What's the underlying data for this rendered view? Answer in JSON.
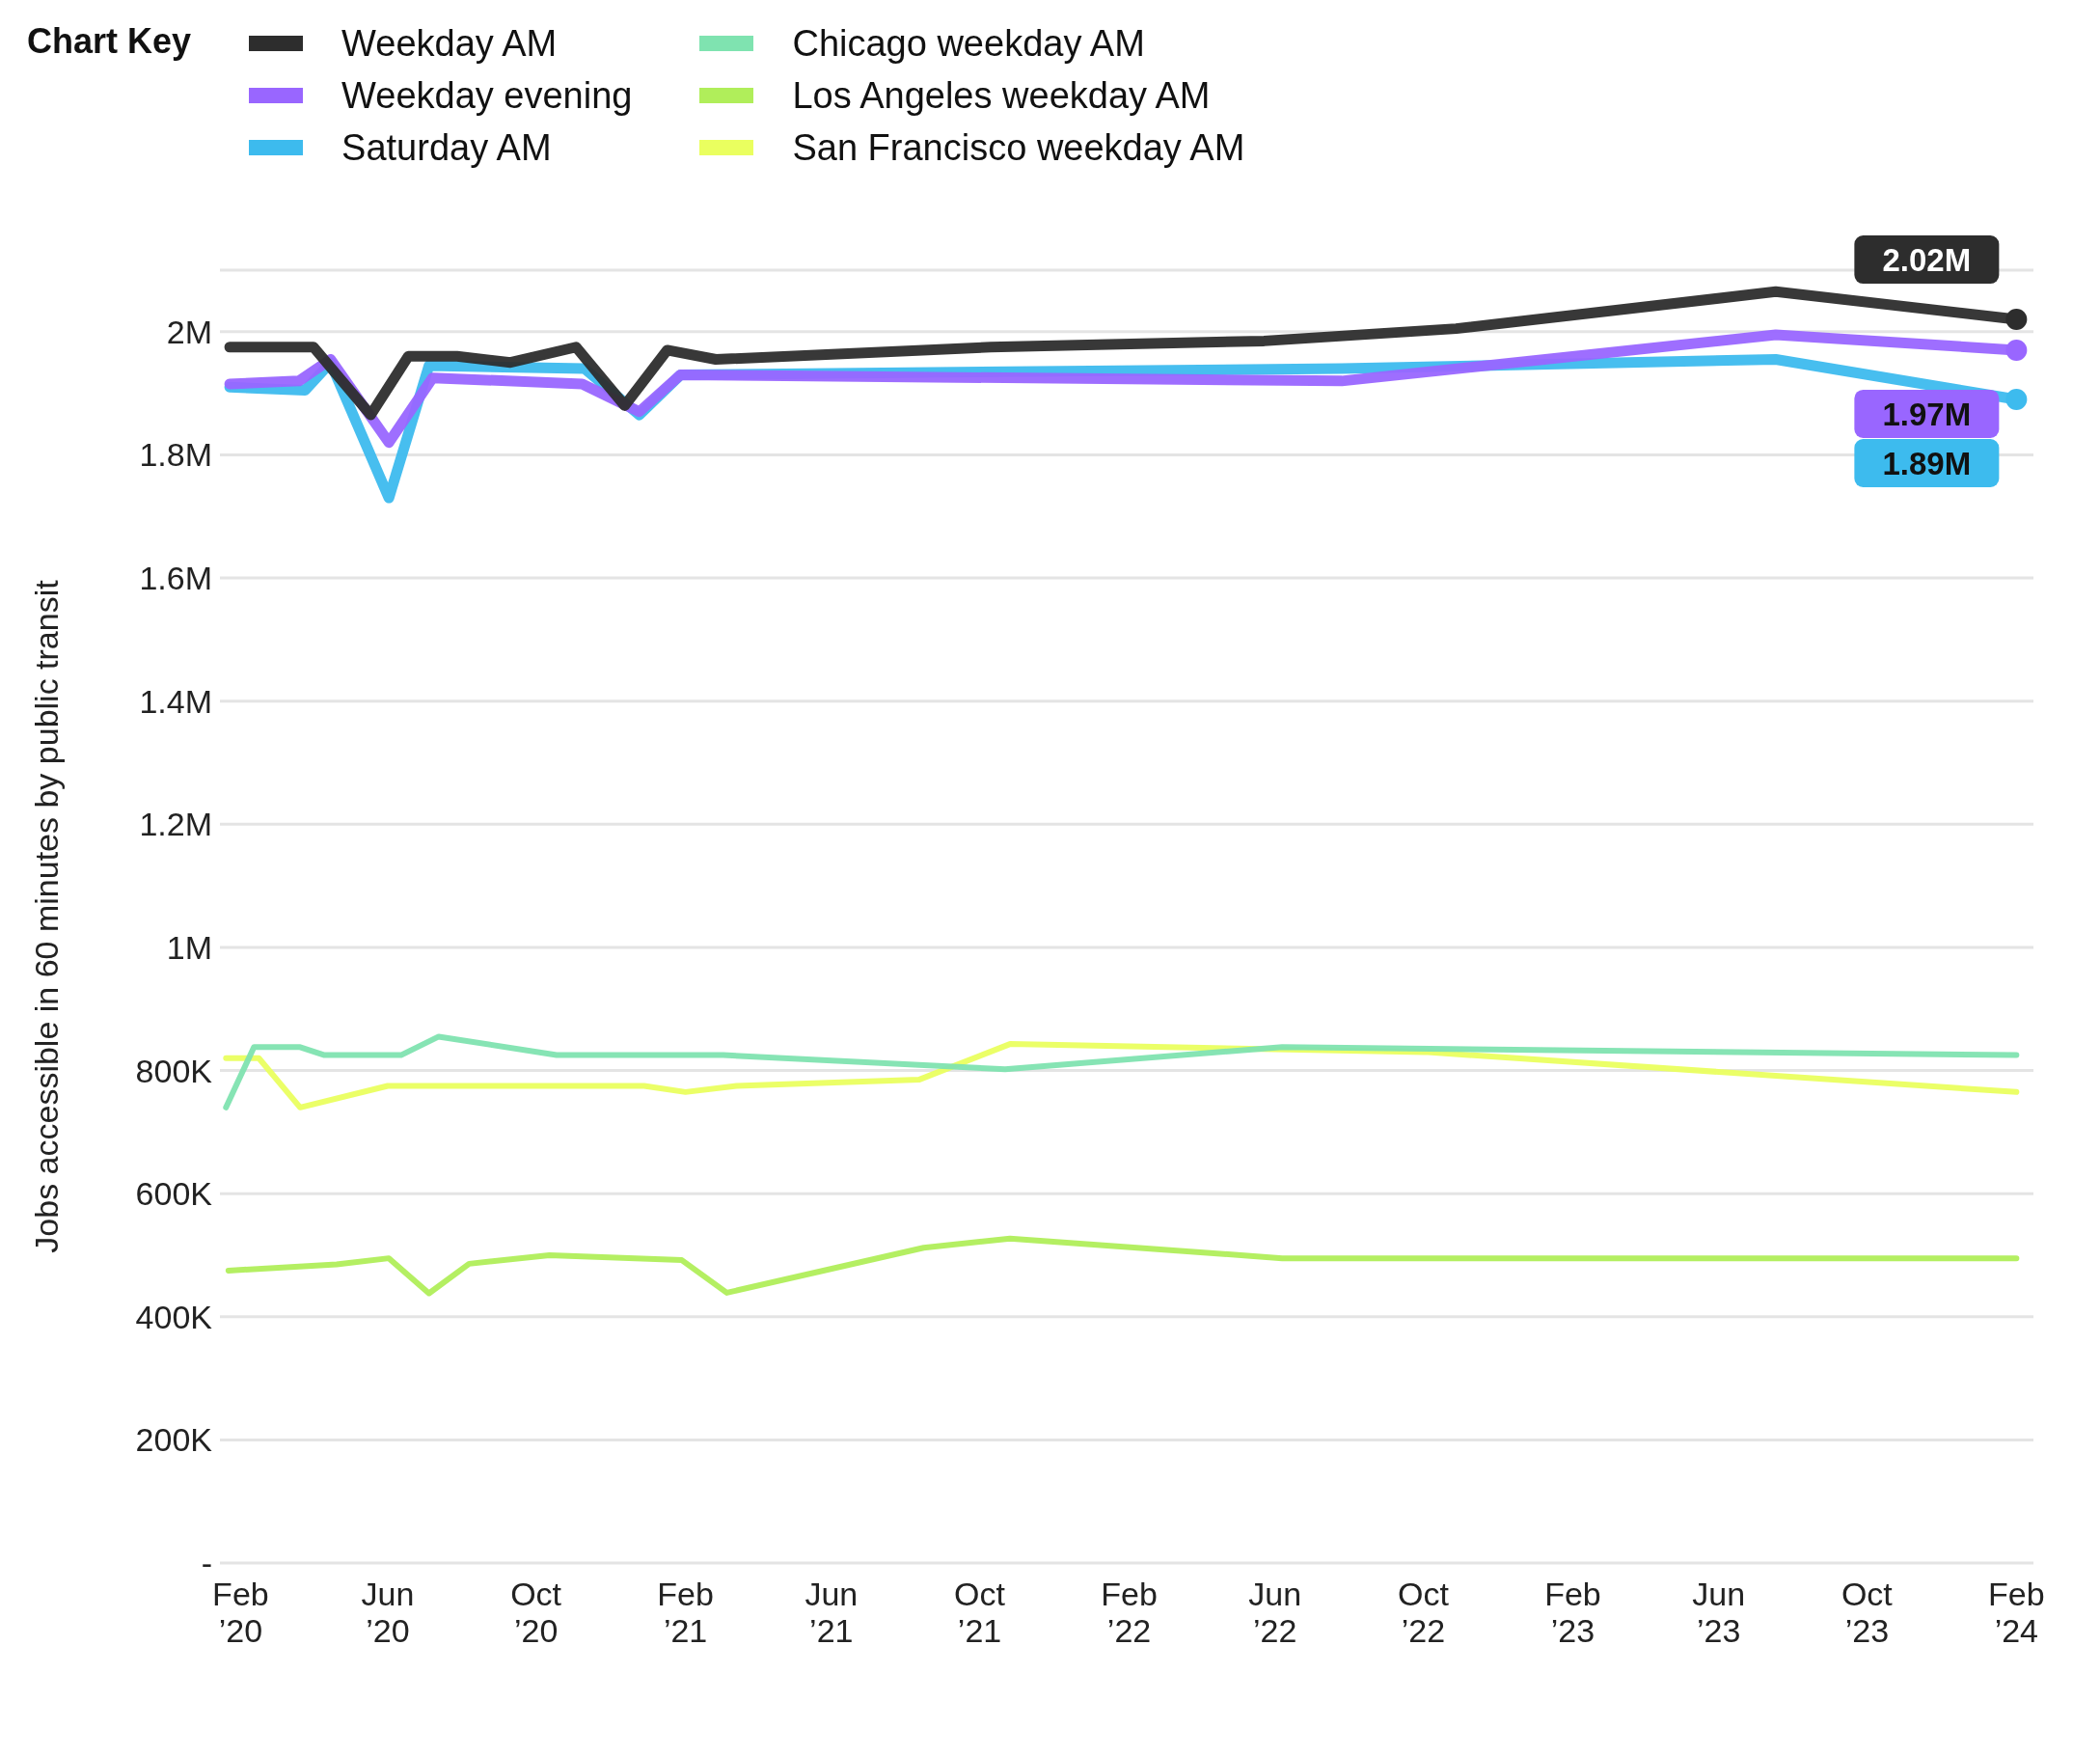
{
  "chart_data": {
    "type": "line",
    "ylabel": "Jobs accessible in 60 minutes by public transit",
    "legend_title": "Chart Key",
    "legend": "top left",
    "grid": "y",
    "marker": "none",
    "line_style": "solid",
    "xlim": [
      "2020-01-15",
      "2024-02-15"
    ],
    "xticks": [
      {
        "value": "2020-02",
        "label": "Feb\n’20"
      },
      {
        "value": "2020-06",
        "label": "Jun\n’20"
      },
      {
        "value": "2020-10",
        "label": "Oct\n’20"
      },
      {
        "value": "2021-02",
        "label": "Feb\n’21"
      },
      {
        "value": "2021-06",
        "label": "Jun\n’21"
      },
      {
        "value": "2021-10",
        "label": "Oct\n’21"
      },
      {
        "value": "2022-02",
        "label": "Feb\n’22"
      },
      {
        "value": "2022-06",
        "label": "Jun\n’22"
      },
      {
        "value": "2022-10",
        "label": "Oct\n’22"
      },
      {
        "value": "2023-02",
        "label": "Feb\n’23"
      },
      {
        "value": "2023-06",
        "label": "Jun\n’23"
      },
      {
        "value": "2023-10",
        "label": "Oct\n’23"
      },
      {
        "value": "2024-02",
        "label": "Feb\n’24"
      }
    ],
    "ylim": [
      0,
      2100000
    ],
    "yticks": [
      {
        "value": 0,
        "label": "-"
      },
      {
        "value": 200000,
        "label": "200K"
      },
      {
        "value": 400000,
        "label": "400K"
      },
      {
        "value": 600000,
        "label": "600K"
      },
      {
        "value": 800000,
        "label": "800K"
      },
      {
        "value": 1000000,
        "label": "1M"
      },
      {
        "value": 1200000,
        "label": "1.2M"
      },
      {
        "value": 1400000,
        "label": "1.4M"
      },
      {
        "value": 1600000,
        "label": "1.6M"
      },
      {
        "value": 1800000,
        "label": "1.8M"
      },
      {
        "value": 2000000,
        "label": "2M"
      }
    ],
    "series": [
      {
        "name": "Weekday AM",
        "color": "#2d2d2d",
        "x": [
          "2020-01-23",
          "2020-04-01",
          "2020-05-18",
          "2020-06-18",
          "2020-07-28",
          "2020-09-10",
          "2020-11-03",
          "2020-12-13",
          "2021-01-17",
          "2021-02-26",
          "2021-10-10",
          "2022-05-23",
          "2022-10-28",
          "2023-07-18",
          "2024-02-01"
        ],
        "values": [
          1975000,
          1975000,
          1865000,
          1960000,
          1960000,
          1950000,
          1975000,
          1880000,
          1970000,
          1955000,
          1975000,
          1985000,
          2005000,
          2065000,
          2020000
        ],
        "value_labels": [
          null,
          null,
          null,
          null,
          null,
          null,
          null,
          null,
          null,
          null,
          null,
          null,
          null,
          null,
          "2.02M"
        ]
      },
      {
        "name": "Weekday evening",
        "color": "#9966ff",
        "x": [
          "2020-01-23",
          "2020-03-20",
          "2020-04-15",
          "2020-06-02",
          "2020-07-08",
          "2020-11-08",
          "2020-12-25",
          "2021-01-28",
          "2022-07-26",
          "2023-07-18",
          "2024-02-01"
        ],
        "values": [
          1915000,
          1920000,
          1955000,
          1820000,
          1925000,
          1915000,
          1870000,
          1930000,
          1920000,
          1995000,
          1970000
        ],
        "value_labels": [
          null,
          null,
          null,
          null,
          null,
          null,
          null,
          null,
          null,
          null,
          "1.97M"
        ]
      },
      {
        "name": "Saturday AM",
        "color": "#3dbbee",
        "x": [
          "2020-01-23",
          "2020-03-25",
          "2020-04-15",
          "2020-06-02",
          "2020-07-05",
          "2020-11-10",
          "2020-12-25",
          "2021-01-28",
          "2022-07-26",
          "2023-07-18",
          "2024-02-01"
        ],
        "values": [
          1910000,
          1905000,
          1950000,
          1730000,
          1945000,
          1940000,
          1865000,
          1930000,
          1940000,
          1955000,
          1890000
        ],
        "value_labels": [
          null,
          null,
          null,
          null,
          null,
          null,
          null,
          null,
          null,
          null,
          "1.89M"
        ]
      },
      {
        "name": "Chicago weekday AM",
        "color": "#7fe3b0",
        "x": [
          "2020-01-20",
          "2020-02-12",
          "2020-03-21",
          "2020-04-10",
          "2020-06-12",
          "2020-07-13",
          "2020-10-18",
          "2021-03-04",
          "2021-10-22",
          "2022-06-07",
          "2024-02-01"
        ],
        "values": [
          740000,
          838000,
          838000,
          825000,
          825000,
          855000,
          825000,
          825000,
          802000,
          838000,
          825000
        ]
      },
      {
        "name": "Los Angeles weekday AM",
        "color": "#b0ee5a",
        "x": [
          "2020-01-22",
          "2020-04-20",
          "2020-06-02",
          "2020-07-05",
          "2020-08-07",
          "2020-10-12",
          "2021-01-29",
          "2021-03-07",
          "2021-08-16",
          "2021-10-26",
          "2022-06-07",
          "2024-02-01"
        ],
        "values": [
          475000,
          485000,
          495000,
          438000,
          486000,
          500000,
          492000,
          439000,
          512000,
          527000,
          495000,
          495000
        ]
      },
      {
        "name": "San Francisco weekday AM",
        "color": "#eaff5f",
        "x": [
          "2020-01-20",
          "2020-02-16",
          "2020-03-21",
          "2020-06-01",
          "2020-12-29",
          "2021-02-01",
          "2021-03-15",
          "2021-08-12",
          "2021-10-26",
          "2022-10-02",
          "2024-02-01"
        ],
        "values": [
          820000,
          820000,
          740000,
          775000,
          775000,
          765000,
          775000,
          785000,
          843000,
          830000,
          765000
        ]
      }
    ]
  }
}
